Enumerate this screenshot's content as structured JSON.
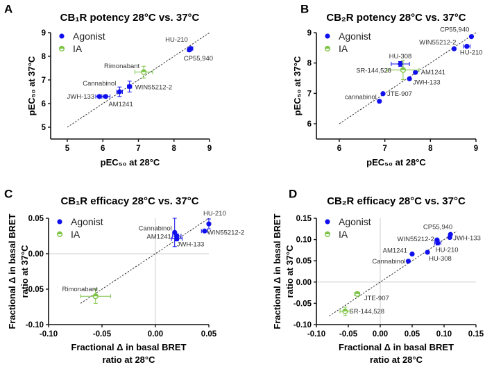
{
  "colors": {
    "agonist": "#1010ee",
    "ia": "#7cc444",
    "axis": "#111111",
    "identity": "#333333",
    "zero": "#cccccc"
  },
  "chart_data": [
    {
      "type": "scatter",
      "panel": "A",
      "title": "CB₁R potency 28°C vs. 37°C",
      "xlabel": "pEC₅₀ at 28°C",
      "ylabel": "pEC₅₀ at 37°C",
      "xlim": [
        4.5,
        9
      ],
      "ylim": [
        4.5,
        9
      ],
      "xticks": [
        5,
        6,
        7,
        8,
        9
      ],
      "yticks": [
        5,
        6,
        7,
        8,
        9
      ],
      "xtick_labels": [
        "5",
        "6",
        "7",
        "8",
        "9"
      ],
      "ytick_labels": [
        "5",
        "6",
        "7",
        "8",
        "9"
      ],
      "zero_lines": false,
      "identity_line": [
        5,
        9
      ],
      "legend": {
        "placement": "top-left",
        "entries": [
          "Agonist",
          "IA"
        ]
      },
      "points": [
        {
          "name": "JWH-133",
          "x": 5.9,
          "y": 6.3,
          "xerr": 0.1,
          "yerr": 0,
          "group": "agonist"
        },
        {
          "name": "AM1241",
          "x": 6.08,
          "y": 6.3,
          "xerr": 0.12,
          "yerr": 0,
          "group": "agonist"
        },
        {
          "name": "Cannabinol",
          "x": 6.47,
          "y": 6.5,
          "xerr": 0.08,
          "yerr": 0.2,
          "group": "agonist"
        },
        {
          "name": "WIN55212-2",
          "x": 6.75,
          "y": 6.72,
          "xerr": 0.06,
          "yerr": 0.23,
          "group": "agonist"
        },
        {
          "name": "HU-210",
          "x": 8.47,
          "y": 8.33,
          "xerr": 0.06,
          "yerr": 0.04,
          "group": "agonist"
        },
        {
          "name": "CP55,940",
          "x": 8.43,
          "y": 8.27,
          "xerr": 0.05,
          "yerr": 0.05,
          "group": "agonist"
        },
        {
          "name": "Rimonabant",
          "x": 7.15,
          "y": 7.33,
          "xerr": 0.25,
          "yerr": 0.25,
          "group": "ia"
        }
      ]
    },
    {
      "type": "scatter",
      "panel": "B",
      "title": "CB₂R potency 28°C vs. 37°C",
      "xlabel": "pEC₅₀ at 28°C",
      "ylabel": "pEC₅₀ at 37°C",
      "xlim": [
        5.5,
        9
      ],
      "ylim": [
        5.5,
        9
      ],
      "xticks": [
        6,
        7,
        8,
        9
      ],
      "yticks": [
        6,
        7,
        8,
        9
      ],
      "xtick_labels": [
        "6",
        "7",
        "8",
        "9"
      ],
      "ytick_labels": [
        "6",
        "7",
        "8",
        "9"
      ],
      "zero_lines": false,
      "identity_line": [
        6,
        9
      ],
      "legend": {
        "placement": "top-left",
        "entries": [
          "Agonist",
          "IA"
        ]
      },
      "points": [
        {
          "name": "cannabinol",
          "x": 6.88,
          "y": 6.74,
          "xerr": 0,
          "yerr": 0,
          "group": "agonist"
        },
        {
          "name": "JTE-907",
          "x": 6.96,
          "y": 6.99,
          "xerr": 0,
          "yerr": 0,
          "group": "agonist"
        },
        {
          "name": "HU-308",
          "x": 7.34,
          "y": 7.97,
          "xerr": 0.2,
          "yerr": 0.08,
          "group": "agonist"
        },
        {
          "name": "JWH-133",
          "x": 7.54,
          "y": 7.48,
          "xerr": 0,
          "yerr": 0,
          "group": "agonist"
        },
        {
          "name": "AM1241",
          "x": 7.67,
          "y": 7.69,
          "xerr": 0,
          "yerr": 0,
          "group": "agonist"
        },
        {
          "name": "WIN55212-2",
          "x": 8.52,
          "y": 8.47,
          "xerr": 0,
          "yerr": 0,
          "group": "agonist"
        },
        {
          "name": "HU-210",
          "x": 8.8,
          "y": 8.55,
          "xerr": 0.07,
          "yerr": 0.04,
          "group": "agonist"
        },
        {
          "name": "CP55,940",
          "x": 8.9,
          "y": 8.87,
          "xerr": 0,
          "yerr": 0,
          "group": "agonist"
        },
        {
          "name": "SR-144,528",
          "x": 7.4,
          "y": 7.77,
          "xerr": 0.35,
          "yerr": 0.32,
          "group": "ia"
        }
      ]
    },
    {
      "type": "scatter",
      "panel": "C",
      "title": "CB₁R efficacy 28°C vs. 37°C",
      "xlabel": "Fractional Δ in basal BRET ratio at 28°C",
      "xlabel_lines": [
        "Fractional Δ in basal BRET",
        "ratio at 28°C"
      ],
      "ylabel": "Fractional Δ in basal BRET ratio at 37°C",
      "ylabel_lines": [
        "Fractional Δ in basal BRET",
        "ratio at 37°C"
      ],
      "xlim": [
        -0.1,
        0.05
      ],
      "ylim": [
        -0.1,
        0.05
      ],
      "xticks": [
        -0.1,
        -0.05,
        0,
        0.05
      ],
      "yticks": [
        -0.1,
        -0.05,
        0,
        0.05
      ],
      "xtick_labels": [
        "-0.10",
        "-0.05",
        "0.00",
        "0.05"
      ],
      "ytick_labels": [
        "-0.10",
        "-0.05",
        "0.00",
        "0.05"
      ],
      "zero_lines": true,
      "identity_line": [
        -0.07,
        0.05
      ],
      "legend": {
        "placement": "top-left",
        "entries": [
          "Agonist",
          "IA"
        ]
      },
      "points": [
        {
          "name": "Cannabinol",
          "x": 0.018,
          "y": 0.03,
          "xerr": 0,
          "yerr": 0.02,
          "group": "agonist"
        },
        {
          "name": "AM1241",
          "x": 0.02,
          "y": 0.025,
          "xerr": 0.004,
          "yerr": 0.003,
          "group": "agonist"
        },
        {
          "name": "JWH-133",
          "x": 0.02,
          "y": 0.021,
          "xerr": 0.005,
          "yerr": 0.003,
          "group": "agonist"
        },
        {
          "name": "HU-210",
          "x": 0.05,
          "y": 0.042,
          "xerr": 0,
          "yerr": 0.007,
          "group": "agonist"
        },
        {
          "name": "WIN55212-2",
          "x": 0.046,
          "y": 0.032,
          "xerr": 0.003,
          "yerr": 0,
          "group": "agonist"
        },
        {
          "name": "Rimonabant",
          "x": -0.056,
          "y": -0.06,
          "xerr": 0.014,
          "yerr": 0.01,
          "group": "ia"
        }
      ]
    },
    {
      "type": "scatter",
      "panel": "D",
      "title": "CB₂R efficacy 28°C vs. 37°C",
      "xlabel": "Fractional Δ in basal BRET ratio at 28°C",
      "xlabel_lines": [
        "Fractional Δ in basal BRET",
        "ratio at 28°C"
      ],
      "ylabel": "Fractional Δ in basal BRET ratio at 37°C",
      "ylabel_lines": [
        "Fractional Δ in basal BRET",
        "ratio at 37°C"
      ],
      "xlim": [
        -0.1,
        0.15
      ],
      "ylim": [
        -0.1,
        0.15
      ],
      "xticks": [
        -0.1,
        -0.05,
        0,
        0.05,
        0.1,
        0.15
      ],
      "yticks": [
        -0.1,
        -0.05,
        0,
        0.05,
        0.1,
        0.15
      ],
      "xtick_labels": [
        "-0.10",
        "-0.05",
        "0.00",
        "0.05",
        "0.10",
        "0.15"
      ],
      "ytick_labels": [
        "-0.10",
        "-0.05",
        "0.00",
        "0.05",
        "0.10",
        "0.15"
      ],
      "zero_lines": true,
      "identity_line": [
        -0.08,
        0.12
      ],
      "legend": {
        "placement": "top-left",
        "entries": [
          "Agonist",
          "IA"
        ]
      },
      "points": [
        {
          "name": "Cannabinol",
          "x": 0.044,
          "y": 0.049,
          "xerr": 0,
          "yerr": 0,
          "group": "agonist"
        },
        {
          "name": "AM1241",
          "x": 0.05,
          "y": 0.066,
          "xerr": 0,
          "yerr": 0,
          "group": "agonist"
        },
        {
          "name": "HU-308",
          "x": 0.074,
          "y": 0.07,
          "xerr": 0,
          "yerr": 0,
          "group": "agonist"
        },
        {
          "name": "WIN55212-2",
          "x": 0.089,
          "y": 0.099,
          "xerr": 0,
          "yerr": 0,
          "group": "agonist"
        },
        {
          "name": "HU-210",
          "x": 0.09,
          "y": 0.092,
          "xerr": 0.005,
          "yerr": 0.005,
          "group": "agonist"
        },
        {
          "name": "CP55,940",
          "x": 0.11,
          "y": 0.112,
          "xerr": 0,
          "yerr": 0,
          "group": "agonist"
        },
        {
          "name": "JWH-133",
          "x": 0.109,
          "y": 0.105,
          "xerr": 0,
          "yerr": 0,
          "group": "agonist"
        },
        {
          "name": "JTE-907",
          "x": -0.036,
          "y": -0.028,
          "xerr": 0.004,
          "yerr": 0.003,
          "group": "ia"
        },
        {
          "name": "SR-144,528",
          "x": -0.055,
          "y": -0.069,
          "xerr": 0.008,
          "yerr": 0.01,
          "group": "ia"
        }
      ]
    }
  ]
}
